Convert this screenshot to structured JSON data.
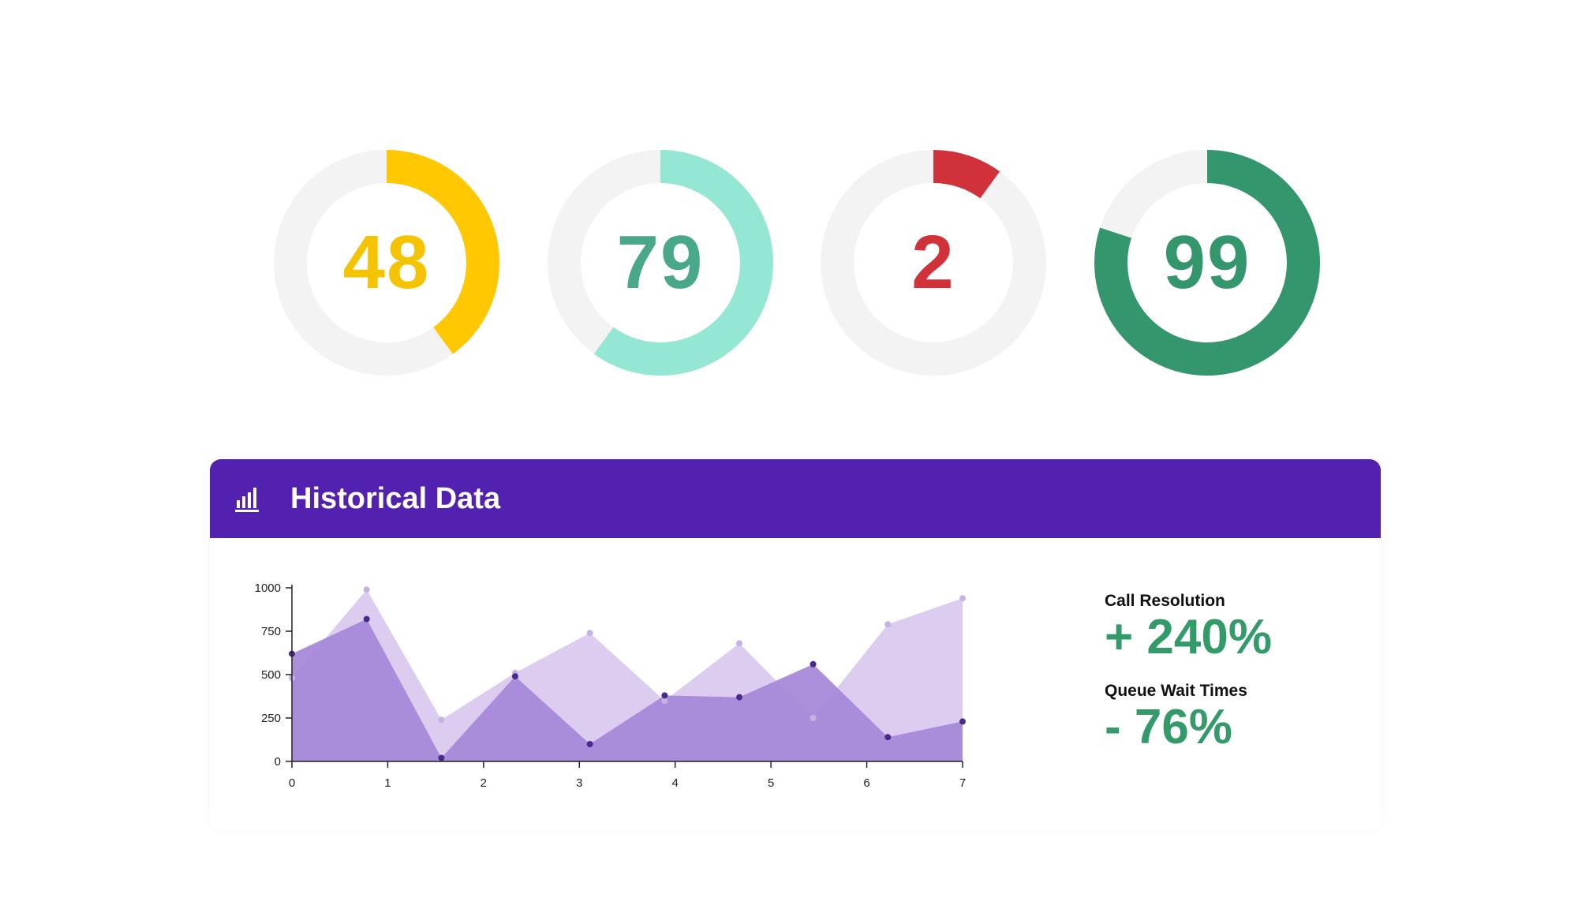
{
  "gauges": [
    {
      "value": "48",
      "percent": 0.4,
      "color": "#ffc800",
      "text_color": "#f5c400",
      "track": "#f3f3f3"
    },
    {
      "value": "79",
      "percent": 0.6,
      "color": "#94e8d3",
      "text_color": "#4aa88a",
      "track": "#f3f3f3"
    },
    {
      "value": "2",
      "percent": 0.1,
      "color": "#d13239",
      "text_color": "#d13239",
      "track": "#f3f3f3"
    },
    {
      "value": "99",
      "percent": 0.8,
      "color": "#34966c",
      "text_color": "#34966c",
      "track": "#f3f3f3"
    }
  ],
  "header": {
    "title": "Historical Data",
    "icon": "bar-chart-icon"
  },
  "chart_data": {
    "type": "area",
    "title": "",
    "xlabel": "",
    "ylabel": "",
    "x_ticks": [
      0,
      1,
      2,
      3,
      4,
      5,
      6,
      7
    ],
    "y_ticks": [
      0,
      250,
      500,
      750,
      1000
    ],
    "xlim": [
      0,
      7
    ],
    "ylim": [
      0,
      1000
    ],
    "grid": false,
    "series": [
      {
        "color": "#dccdf0",
        "point_color": "#c7b2e6",
        "x": [
          0,
          0.78,
          1.56,
          2.33,
          3.11,
          3.89,
          4.67,
          5.44,
          6.22,
          7
        ],
        "y": [
          480,
          990,
          240,
          510,
          740,
          350,
          680,
          250,
          790,
          940
        ]
      },
      {
        "color": "#a689d8",
        "point_color": "#4a2a8a",
        "x": [
          0,
          0.78,
          1.56,
          2.33,
          3.11,
          3.89,
          4.67,
          5.44,
          6.22,
          7
        ],
        "y": [
          620,
          820,
          20,
          490,
          100,
          380,
          370,
          560,
          140,
          230
        ]
      }
    ]
  },
  "stats": [
    {
      "label": "Call Resolution",
      "value": "+ 240%"
    },
    {
      "label": "Queue Wait Times",
      "value": "- 76%"
    }
  ]
}
